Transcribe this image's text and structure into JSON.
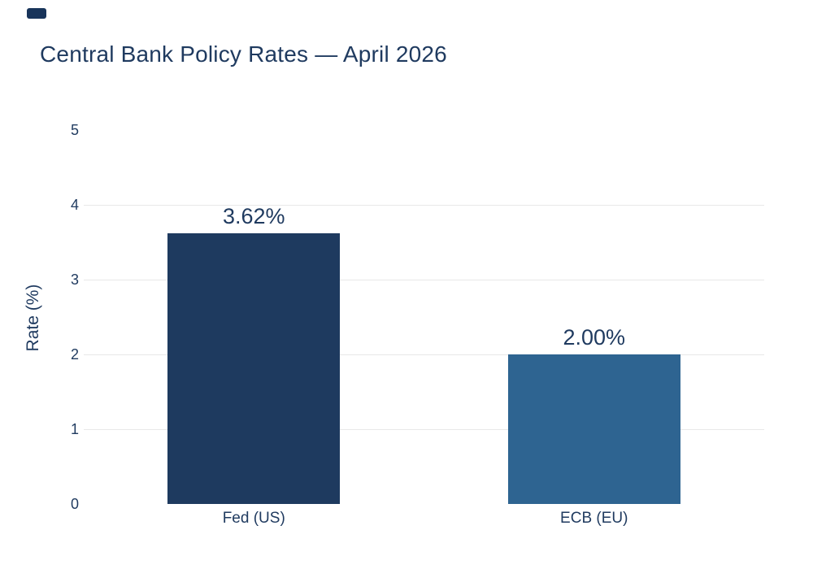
{
  "window": {
    "background": "#ffffff"
  },
  "decor": {
    "corner_mark_color": "#18345a"
  },
  "chart_data": {
    "type": "bar",
    "title": "Central Bank Policy Rates — April 2026",
    "xlabel": "",
    "ylabel": "Rate (%)",
    "categories": [
      "Fed (US)",
      "ECB (EU)"
    ],
    "values": [
      3.62,
      2.0
    ],
    "value_labels": [
      "3.62%",
      "2.00%"
    ],
    "bar_colors": [
      "#1e3a5f",
      "#2e6491"
    ],
    "ylim": [
      0,
      5
    ],
    "yticks": [
      0,
      1,
      2,
      3,
      4,
      5
    ],
    "grid": true,
    "gridline_ticks": [
      1,
      2,
      3,
      4
    ],
    "gridline_color": "#e8e8e8",
    "text_color": "#1f3a5f",
    "legend_position": "none"
  }
}
